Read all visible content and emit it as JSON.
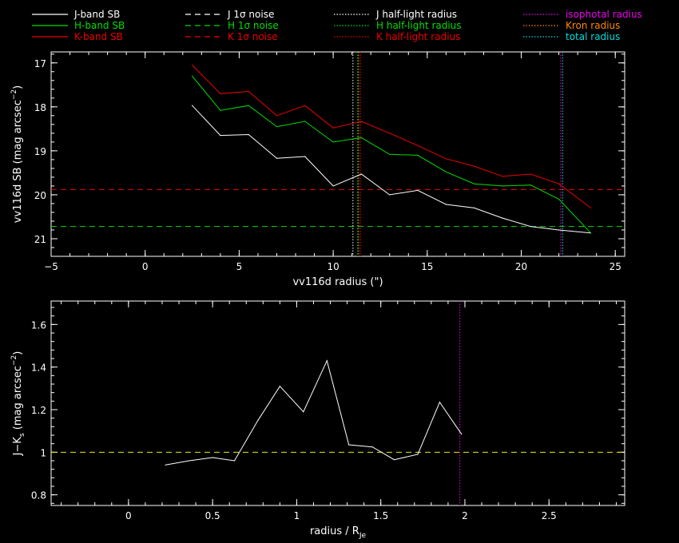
{
  "colors": {
    "background": "#000000",
    "axes": "#ffffff",
    "j": "#ffffff",
    "h": "#00dd00",
    "k": "#ee0000",
    "isophotal": "#ee00ee",
    "kron": "#ff8800",
    "total": "#00dddd",
    "jk_ref": "#eeee00"
  },
  "legend": [
    {
      "label": "J-band SB",
      "color": "#ffffff",
      "style": "solid"
    },
    {
      "label": "H-band SB",
      "color": "#00dd00",
      "style": "solid"
    },
    {
      "label": "K-band SB",
      "color": "#ee0000",
      "style": "solid"
    },
    {
      "label": "J 1σ noise",
      "color": "#ffffff",
      "style": "dashed"
    },
    {
      "label": "H 1σ noise",
      "color": "#00dd00",
      "style": "dashed"
    },
    {
      "label": "K 1σ noise",
      "color": "#ee0000",
      "style": "dashed"
    },
    {
      "label": "J half-light radius",
      "color": "#ffffff",
      "style": "dotted"
    },
    {
      "label": "H half-light radius",
      "color": "#00dd00",
      "style": "dotted"
    },
    {
      "label": "K half-light radius",
      "color": "#ee0000",
      "style": "dotted"
    },
    {
      "label": "isophotal radius",
      "color": "#ee00ee",
      "style": "dotted"
    },
    {
      "label": "Kron radius",
      "color": "#ff8800",
      "style": "dotted"
    },
    {
      "label": "total radius",
      "color": "#00dddd",
      "style": "dotted"
    }
  ],
  "chart_data": [
    {
      "type": "line",
      "xlabel": "vv116d radius (\")",
      "ylabel": "vv116d SB (mag arcsec",
      "ylabel_sup": "−2",
      "ylabel_end": ")",
      "xlim": [
        -5,
        25.5
      ],
      "ylim": [
        21.4,
        16.75
      ],
      "y_inverted": true,
      "xticks": [
        -5,
        0,
        5,
        10,
        15,
        20,
        25
      ],
      "yticks": [
        17,
        18,
        19,
        20,
        21
      ],
      "series": [
        {
          "name": "J-band SB",
          "color": "#ffffff",
          "x": [
            2.5,
            4.0,
            5.5,
            7.0,
            8.5,
            10.0,
            11.5,
            13.0,
            14.5,
            16.0,
            17.5,
            19.0,
            20.5,
            22.0,
            23.7
          ],
          "y": [
            17.97,
            18.65,
            18.63,
            19.17,
            19.13,
            19.8,
            19.53,
            20.0,
            19.9,
            20.22,
            20.3,
            20.53,
            20.72,
            20.8,
            20.87
          ]
        },
        {
          "name": "H-band SB",
          "color": "#00dd00",
          "x": [
            2.5,
            4.0,
            5.5,
            7.0,
            8.5,
            10.0,
            11.5,
            13.0,
            14.5,
            16.0,
            17.5,
            19.0,
            20.5,
            22.0,
            23.7
          ],
          "y": [
            17.3,
            18.08,
            17.97,
            18.45,
            18.33,
            18.8,
            18.7,
            19.08,
            19.1,
            19.48,
            19.75,
            19.8,
            19.78,
            20.1,
            20.87
          ]
        },
        {
          "name": "K-band SB",
          "color": "#ee0000",
          "x": [
            2.5,
            4.0,
            5.5,
            7.0,
            8.5,
            10.0,
            11.5,
            13.0,
            14.5,
            16.0,
            17.5,
            19.0,
            20.5,
            22.0,
            23.7
          ],
          "y": [
            17.05,
            17.7,
            17.65,
            18.2,
            17.97,
            18.48,
            18.33,
            18.6,
            18.88,
            19.18,
            19.35,
            19.58,
            19.53,
            19.75,
            20.3
          ]
        }
      ],
      "hlines": [
        {
          "label": "K 1σ noise",
          "y": 19.88,
          "color": "#ee0000",
          "style": "dashed"
        },
        {
          "label": "H 1σ noise",
          "y": 20.72,
          "color": "#00dd00",
          "style": "dashed"
        }
      ],
      "vlines": [
        {
          "label": "J half-light radius",
          "x": 11.05,
          "color": "#ffffff",
          "style": "dotted"
        },
        {
          "label": "H half-light radius",
          "x": 11.3,
          "color": "#00dd00",
          "style": "dotted"
        },
        {
          "label": "K half-light radius",
          "x": 11.45,
          "color": "#ee0000",
          "style": "dotted"
        },
        {
          "label": "Kron radius",
          "x": 11.35,
          "color": "#ff8800",
          "style": "dotted"
        },
        {
          "label": "isophotal radius",
          "x": 22.1,
          "color": "#ee00ee",
          "style": "dotted"
        },
        {
          "label": "total radius",
          "x": 22.2,
          "color": "#00dddd",
          "style": "dotted"
        }
      ]
    },
    {
      "type": "line",
      "xlabel": "radius / R",
      "xlabel_sub": "Je",
      "ylabel": "J−K",
      "ylabel_sub": "s",
      "ylabel_mid": " (mag arcsec",
      "ylabel_sup": "−2",
      "ylabel_end": ")",
      "xlim": [
        -0.46,
        2.95
      ],
      "ylim": [
        0.75,
        1.71
      ],
      "xticks": [
        0,
        0.5,
        1,
        1.5,
        2,
        2.5
      ],
      "yticks": [
        0.8,
        1,
        1.2,
        1.4,
        1.6
      ],
      "series": [
        {
          "name": "J−Ks",
          "color": "#ffffff",
          "x": [
            0.22,
            0.36,
            0.5,
            0.63,
            0.77,
            0.9,
            1.04,
            1.18,
            1.31,
            1.45,
            1.58,
            1.72,
            1.85,
            1.98
          ],
          "y": [
            0.94,
            0.96,
            0.975,
            0.96,
            1.15,
            1.31,
            1.19,
            1.43,
            1.035,
            1.025,
            0.965,
            0.99,
            1.235,
            1.085
          ]
        }
      ],
      "hlines": [
        {
          "y": 1.0,
          "color": "#eeee00",
          "style": "dashed"
        }
      ],
      "vlines": [
        {
          "label": "isophotal radius",
          "x": 1.97,
          "color": "#ee00ee",
          "style": "dotted"
        }
      ]
    }
  ]
}
